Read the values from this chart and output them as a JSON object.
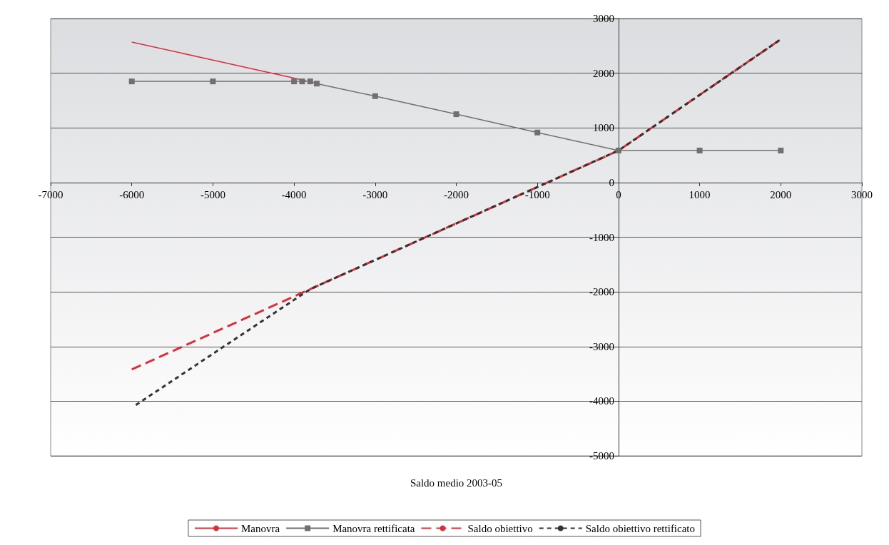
{
  "chart_data": {
    "type": "line",
    "xlabel": "Saldo medio 2003-05",
    "xlim": [
      -7000,
      3000
    ],
    "xticks": [
      -7000,
      -6000,
      -5000,
      -4000,
      -3000,
      -2000,
      -1000,
      0,
      1000,
      2000,
      3000
    ],
    "ylim": [
      -5000,
      3000
    ],
    "yticks": [
      -5000,
      -4000,
      -3000,
      -2000,
      -1000,
      0,
      1000,
      2000,
      3000
    ],
    "grid": "y",
    "legend": "bottom",
    "series": [
      {
        "name": "Manovra",
        "color": "#d9303e",
        "marker": "none",
        "line_style": "solid",
        "x": [
          -6000,
          -5000,
          -4000,
          -3850
        ],
        "values": [
          2570,
          2240,
          1910,
          1860
        ]
      },
      {
        "name": "Manovra rettificata",
        "color": "#707070",
        "marker": "square",
        "line_style": "solid",
        "x": [
          -6000,
          -5000,
          -4000,
          -3900,
          -3800,
          -3720,
          -3000,
          -2000,
          -1000,
          0,
          1000,
          2000
        ],
        "values": [
          1850,
          1850,
          1850,
          1850,
          1850,
          1810,
          1580,
          1250,
          915,
          585,
          585,
          585
        ]
      },
      {
        "name": "Saldo obiettivo",
        "color": "#d9303e",
        "marker": "none",
        "line_style": "dashed",
        "x": [
          -6000,
          -3800,
          0,
          2000
        ],
        "values": [
          -3420,
          -1950,
          585,
          2620
        ]
      },
      {
        "name": "Saldo obiettivo rettificato",
        "color": "#333333",
        "marker": "none",
        "line_style": "dotted",
        "x": [
          -5950,
          -3800,
          0,
          2000
        ],
        "values": [
          -4070,
          -1950,
          585,
          2620
        ]
      }
    ]
  }
}
